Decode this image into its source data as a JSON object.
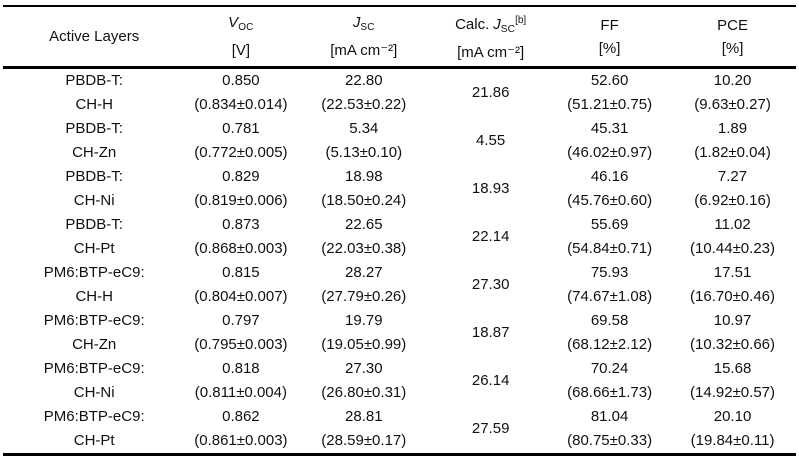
{
  "header": {
    "active_layers": "Active Layers",
    "voc": {
      "symbol": "V",
      "sub": "OC",
      "unit": "[V]"
    },
    "jsc": {
      "symbol": "J",
      "sub": "SC",
      "unit": "[mA cm⁻²]"
    },
    "calc_jsc": {
      "prefix": "Calc.",
      "symbol": "J",
      "sub": "SC",
      "sup": "[b]",
      "unit": "[mA cm⁻²]"
    },
    "ff": {
      "label": "FF",
      "unit": "[%]"
    },
    "pce": {
      "label": "PCE",
      "unit": "[%]"
    }
  },
  "rows": [
    {
      "layer_line1": "PBDB-T:",
      "layer_line2": "CH-H",
      "voc": "0.850",
      "voc_stat": "(0.834±0.014)",
      "jsc": "22.80",
      "jsc_stat": "(22.53±0.22)",
      "calc_jsc": "21.86",
      "ff": "52.60",
      "ff_stat": "(51.21±0.75)",
      "pce": "10.20",
      "pce_stat": "(9.63±0.27)"
    },
    {
      "layer_line1": "PBDB-T:",
      "layer_line2": "CH-Zn",
      "voc": "0.781",
      "voc_stat": "(0.772±0.005)",
      "jsc": "5.34",
      "jsc_stat": "(5.13±0.10)",
      "calc_jsc": "4.55",
      "ff": "45.31",
      "ff_stat": "(46.02±0.97)",
      "pce": "1.89",
      "pce_stat": "(1.82±0.04)"
    },
    {
      "layer_line1": "PBDB-T:",
      "layer_line2": "CH-Ni",
      "voc": "0.829",
      "voc_stat": "(0.819±0.006)",
      "jsc": "18.98",
      "jsc_stat": "(18.50±0.24)",
      "calc_jsc": "18.93",
      "ff": "46.16",
      "ff_stat": "(45.76±0.60)",
      "pce": "7.27",
      "pce_stat": "(6.92±0.16)"
    },
    {
      "layer_line1": "PBDB-T:",
      "layer_line2": "CH-Pt",
      "voc": "0.873",
      "voc_stat": "(0.868±0.003)",
      "jsc": "22.65",
      "jsc_stat": "(22.03±0.38)",
      "calc_jsc": "22.14",
      "ff": "55.69",
      "ff_stat": "(54.84±0.71)",
      "pce": "11.02",
      "pce_stat": "(10.44±0.23)"
    },
    {
      "layer_line1": "PM6:BTP-eC9:",
      "layer_line2": "CH-H",
      "voc": "0.815",
      "voc_stat": "(0.804±0.007)",
      "jsc": "28.27",
      "jsc_stat": "(27.79±0.26)",
      "calc_jsc": "27.30",
      "ff": "75.93",
      "ff_stat": "(74.67±1.08)",
      "pce": "17.51",
      "pce_stat": "(16.70±0.46)"
    },
    {
      "layer_line1": "PM6:BTP-eC9:",
      "layer_line2": "CH-Zn",
      "voc": "0.797",
      "voc_stat": "(0.795±0.003)",
      "jsc": "19.79",
      "jsc_stat": "(19.05±0.99)",
      "calc_jsc": "18.87",
      "ff": "69.58",
      "ff_stat": "(68.12±2.12)",
      "pce": "10.97",
      "pce_stat": "(10.32±0.66)"
    },
    {
      "layer_line1": "PM6:BTP-eC9:",
      "layer_line2": "CH-Ni",
      "voc": "0.818",
      "voc_stat": "(0.811±0.004)",
      "jsc": "27.30",
      "jsc_stat": "(26.80±0.31)",
      "calc_jsc": "26.14",
      "ff": "70.24",
      "ff_stat": "(68.66±1.73)",
      "pce": "15.68",
      "pce_stat": "(14.92±0.57)"
    },
    {
      "layer_line1": "PM6:BTP-eC9:",
      "layer_line2": "CH-Pt",
      "voc": "0.862",
      "voc_stat": "(0.861±0.003)",
      "jsc": "28.81",
      "jsc_stat": "(28.59±0.17)",
      "calc_jsc": "27.59",
      "ff": "81.04",
      "ff_stat": "(80.75±0.33)",
      "pce": "20.10",
      "pce_stat": "(19.84±0.11)"
    }
  ]
}
